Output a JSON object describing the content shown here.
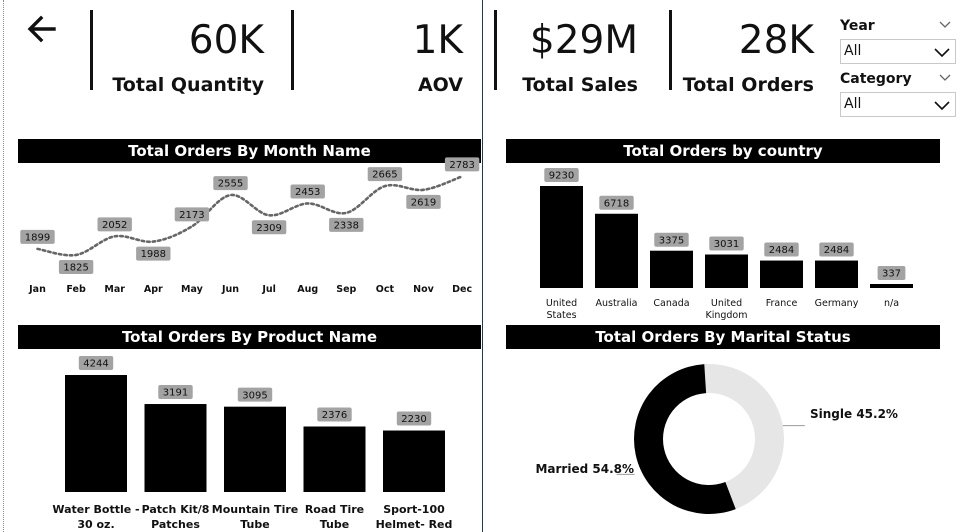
{
  "nav": {
    "back_icon": "arrow-left-icon"
  },
  "kpis": [
    {
      "value": "60K",
      "label": "Total Quantity"
    },
    {
      "value": "1K",
      "label": "AOV"
    },
    {
      "value": "$29M",
      "label": "Total Sales"
    },
    {
      "value": "28K",
      "label": "Total Orders"
    }
  ],
  "filters": {
    "year": {
      "label": "Year",
      "value": "All"
    },
    "category": {
      "label": "Category",
      "value": "All"
    }
  },
  "panels": {
    "month": "Total Orders By Month Name",
    "country": "Total Orders by country",
    "product": "Total Orders By Product Name",
    "marital": "Total Orders By Marital Status"
  },
  "chart_data": [
    {
      "id": "orders_by_month",
      "type": "line",
      "title": "Total Orders By Month Name",
      "categories": [
        "Jan",
        "Feb",
        "Mar",
        "Apr",
        "May",
        "Jun",
        "Jul",
        "Aug",
        "Sep",
        "Oct",
        "Nov",
        "Dec"
      ],
      "values": [
        1899,
        1825,
        2052,
        1988,
        2173,
        2555,
        2309,
        2453,
        2338,
        2665,
        2619,
        2783
      ],
      "line_style": "dotted",
      "color": "#666666"
    },
    {
      "id": "orders_by_country",
      "type": "bar",
      "title": "Total Orders by country",
      "categories": [
        [
          "United",
          "States"
        ],
        [
          "Australia"
        ],
        [
          "Canada"
        ],
        [
          "United",
          "Kingdom"
        ],
        [
          "France"
        ],
        [
          "Germany"
        ],
        [
          "n/a"
        ]
      ],
      "values": [
        9230,
        6718,
        3375,
        3031,
        2484,
        2484,
        337
      ],
      "color": "#000000"
    },
    {
      "id": "orders_by_product",
      "type": "bar",
      "title": "Total Orders By Product Name",
      "categories": [
        [
          "Water Bottle -",
          "30 oz."
        ],
        [
          "Patch Kit/8",
          "Patches"
        ],
        [
          "Mountain Tire",
          "Tube"
        ],
        [
          "Road Tire",
          "Tube"
        ],
        [
          "Sport-100",
          "Helmet- Red"
        ]
      ],
      "values": [
        4244,
        3191,
        3095,
        2376,
        2230
      ],
      "color": "#000000"
    },
    {
      "id": "orders_by_marital_status",
      "type": "pie",
      "title": "Total Orders By Marital Status",
      "slices": [
        {
          "label": "Married",
          "value": 54.8,
          "display": "Married 54.8%",
          "color": "#000000"
        },
        {
          "label": "Single",
          "value": 45.2,
          "display": "Single 45.2%",
          "color": "#e6e6e6"
        }
      ]
    }
  ],
  "colors": {
    "label_bg": "#a3a3a3",
    "bar": "#000000",
    "divider": "#1e3b57"
  }
}
